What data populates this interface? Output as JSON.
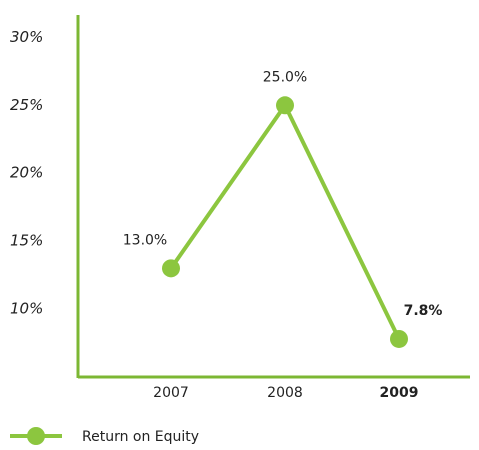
{
  "chart_data": {
    "type": "line",
    "categories": [
      "2007",
      "2008",
      "2009"
    ],
    "series": [
      {
        "name": "Return on Equity",
        "color": "#8cc63f",
        "values": [
          13.0,
          25.0,
          7.8
        ],
        "value_labels": [
          "13.0%",
          "25.0%",
          "7.8%"
        ]
      }
    ],
    "ylim": [
      5,
      31.5
    ],
    "yticks": [
      {
        "value": 10,
        "label": "10%"
      },
      {
        "value": 15,
        "label": "15%"
      },
      {
        "value": 20,
        "label": "20%"
      },
      {
        "value": 25,
        "label": "25%"
      },
      {
        "value": 30,
        "label": "30%"
      }
    ],
    "grid": false
  }
}
